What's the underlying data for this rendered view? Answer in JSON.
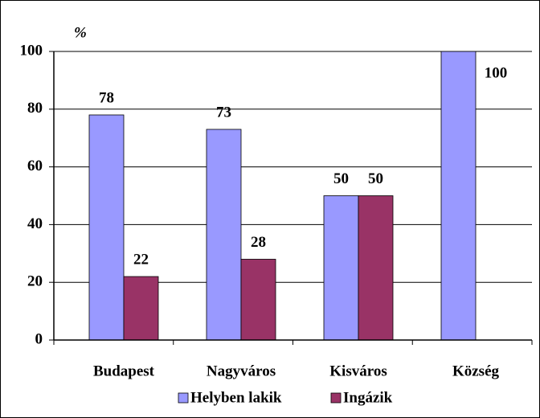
{
  "chart_data": {
    "type": "bar",
    "y_label": "%",
    "categories": [
      "Budapest",
      "Nagyváros",
      "Kisváros",
      "Község"
    ],
    "series": [
      {
        "name": "Helyben lakik",
        "color": "#9999ff",
        "values": [
          78,
          73,
          50,
          100
        ]
      },
      {
        "name": "Ingázik",
        "color": "#993366",
        "values": [
          22,
          28,
          50,
          null
        ]
      }
    ],
    "ylim": [
      0,
      100
    ],
    "yticks": [
      0,
      20,
      40,
      60,
      80,
      100
    ],
    "grid": true,
    "legend": "bottom"
  }
}
